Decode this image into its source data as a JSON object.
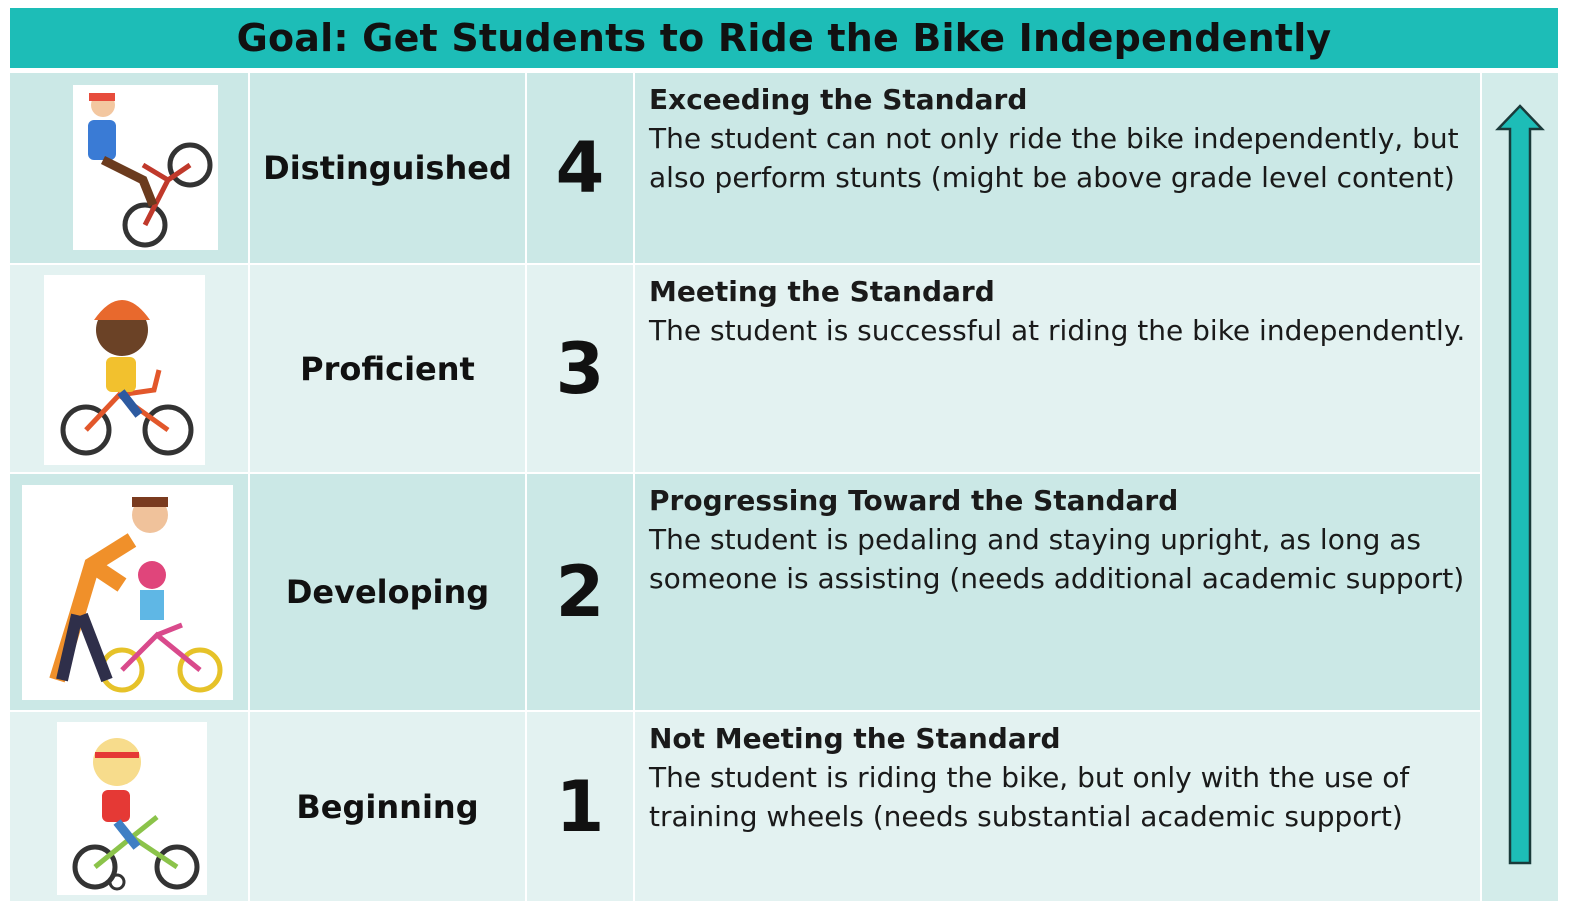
{
  "header": {
    "title": "Goal: Get Students to Ride the Bike Independently"
  },
  "rows": [
    {
      "level": "Distinguished",
      "score": 4,
      "heading": "Exceeding the Standard",
      "description": "The student can not only ride the bike independently, but also perform stunts (might be above grade level content)"
    },
    {
      "level": "Proficient",
      "score": 3,
      "heading": "Meeting the Standard",
      "description": "The student is successful at riding the bike independently."
    },
    {
      "level": "Developing",
      "score": 2,
      "heading": "Progressing Toward the Standard",
      "description": "The student is pedaling and staying upright, as long as someone is assisting (needs additional academic support)"
    },
    {
      "level": "Beginning",
      "score": 1,
      "heading": "Not Meeting the Standard",
      "description": "The student is riding the bike, but only with the use of training wheels (needs substantial academic support)"
    }
  ]
}
